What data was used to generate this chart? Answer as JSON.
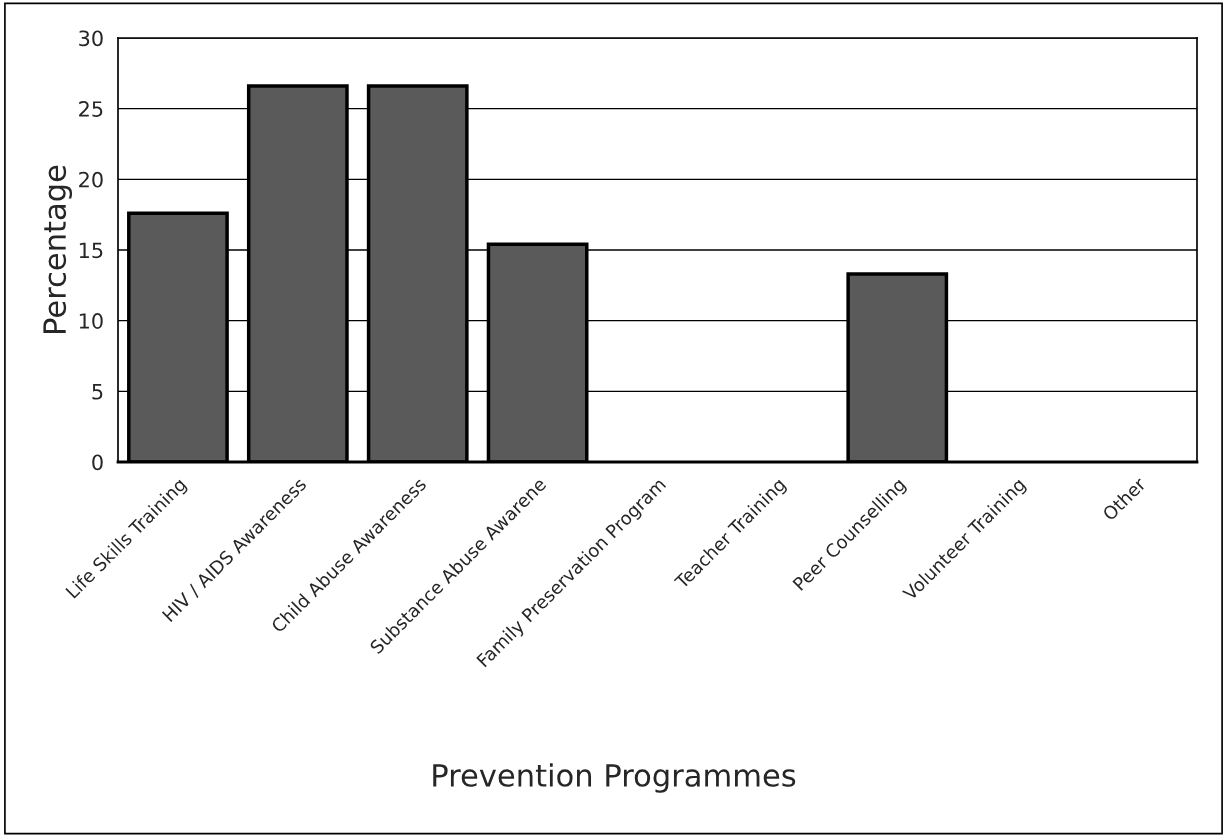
{
  "chart_data": {
    "type": "bar",
    "categories": [
      "Life Skills Training",
      "HIV / AIDS Awareness",
      "Child Abuse Awareness",
      "Substance Abuse Awarene",
      "Family Preservation Program",
      "Teacher Training",
      "Peer Counselling",
      "Volunteer Training",
      "Other"
    ],
    "values": [
      17.6,
      26.6,
      26.6,
      15.4,
      0,
      0,
      13.3,
      0,
      0
    ],
    "color": "#5a5a5a",
    "xlabel": "Prevention Programmes",
    "ylabel": "Percentage",
    "ylim": [
      0,
      30
    ],
    "yticks": [
      0,
      5,
      10,
      15,
      20,
      25,
      30
    ],
    "grid": "y"
  }
}
